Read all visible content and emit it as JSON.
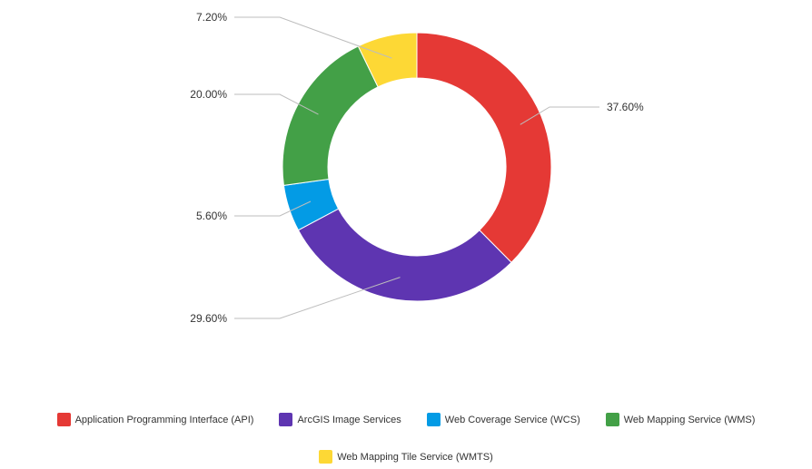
{
  "chart_data": {
    "type": "pie",
    "variant": "donut",
    "slices": [
      {
        "name": "Application Programming Interface (API)",
        "value": 37.6,
        "label": "37.60%",
        "color": "#e53935"
      },
      {
        "name": "ArcGIS Image Services",
        "value": 29.6,
        "label": "29.60%",
        "color": "#5e35b1"
      },
      {
        "name": "Web Coverage Service (WCS)",
        "value": 5.6,
        "label": "5.60%",
        "color": "#039be5"
      },
      {
        "name": "Web Mapping Service (WMS)",
        "value": 20.0,
        "label": "20.00%",
        "color": "#43a047"
      },
      {
        "name": "Web Mapping Tile Service (WMTS)",
        "value": 7.2,
        "label": "7.20%",
        "color": "#fdd835"
      }
    ],
    "legend_position": "bottom",
    "start_angle": "top, clockwise"
  }
}
